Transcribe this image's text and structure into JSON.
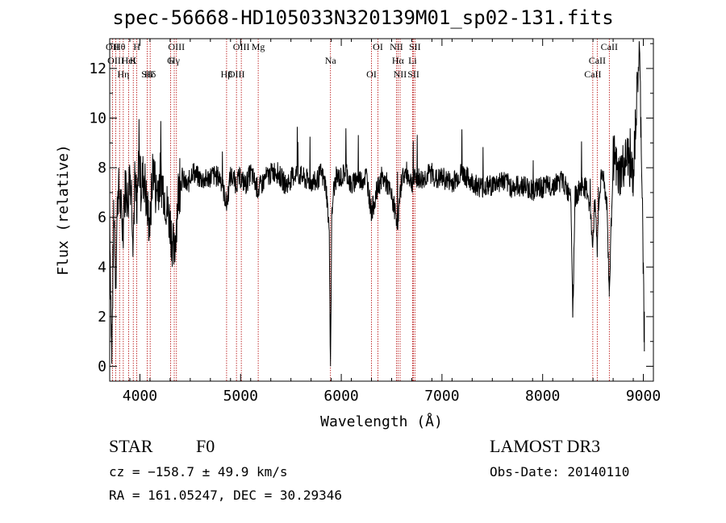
{
  "chart_data": {
    "type": "line",
    "title": "spec-56668-HD105033N320139M01_sp02-131.fits",
    "xlabel": "Wavelength (Å)",
    "ylabel": "Flux (relative)",
    "xlim": [
      3700,
      9100
    ],
    "ylim": [
      -0.6,
      13.2
    ],
    "xticks": [
      4000,
      5000,
      6000,
      7000,
      8000,
      9000
    ],
    "yticks": [
      0,
      2,
      4,
      6,
      8,
      10,
      12
    ],
    "series": [
      {
        "name": "flux",
        "x": [
          3700,
          3720,
          3740,
          3760,
          3780,
          3800,
          3830,
          3860,
          3880,
          3900,
          3920,
          3933,
          3950,
          3968,
          3990,
          4010,
          4040,
          4070,
          4101,
          4130,
          4160,
          4200,
          4230,
          4260,
          4300,
          4340,
          4380,
          4420,
          4470,
          4520,
          4580,
          4650,
          4720,
          4800,
          4861,
          4900,
          4950,
          5000,
          5050,
          5100,
          5175,
          5250,
          5350,
          5450,
          5550,
          5650,
          5750,
          5800,
          5850,
          5880,
          5893,
          5905,
          5920,
          5950,
          6000,
          6050,
          6100,
          6150,
          6200,
          6250,
          6300,
          6350,
          6400,
          6450,
          6500,
          6563,
          6600,
          6650,
          6700,
          6750,
          6800,
          6850,
          6900,
          6950,
          7000,
          7100,
          7200,
          7300,
          7400,
          7500,
          7600,
          7700,
          7800,
          7900,
          8000,
          8100,
          8200,
          8250,
          8280,
          8300,
          8320,
          8350,
          8400,
          8450,
          8498,
          8520,
          8542,
          8570,
          8600,
          8640,
          8662,
          8700,
          8750,
          8800,
          8850,
          8900,
          8930,
          8960,
          8990,
          9010
        ],
        "values": [
          6.5,
          0.1,
          6.0,
          3.5,
          7.2,
          6.8,
          5.5,
          7.5,
          6.5,
          8.0,
          6.8,
          5.2,
          7.5,
          5.6,
          8.5,
          7.2,
          7.8,
          6.4,
          5.6,
          8.2,
          7.0,
          7.6,
          7.3,
          6.6,
          5.8,
          4.4,
          7.0,
          7.6,
          7.2,
          7.9,
          7.6,
          7.5,
          7.7,
          7.6,
          6.5,
          7.7,
          7.4,
          7.6,
          7.3,
          7.8,
          7.1,
          7.6,
          7.9,
          7.3,
          7.8,
          7.5,
          7.4,
          7.8,
          7.2,
          5.5,
          0.0,
          5.8,
          7.0,
          7.6,
          7.6,
          7.9,
          7.2,
          7.6,
          7.5,
          7.7,
          6.2,
          7.0,
          7.6,
          7.4,
          6.8,
          5.8,
          7.6,
          7.8,
          7.4,
          7.6,
          7.5,
          7.7,
          7.8,
          7.5,
          7.6,
          7.4,
          7.8,
          7.4,
          7.2,
          7.3,
          7.5,
          7.2,
          7.3,
          7.1,
          7.2,
          7.3,
          7.5,
          7.0,
          7.2,
          2.0,
          6.8,
          7.0,
          7.3,
          7.0,
          5.0,
          6.8,
          4.8,
          7.4,
          7.8,
          6.4,
          2.8,
          8.6,
          7.5,
          8.0,
          8.4,
          7.5,
          10.2,
          12.8,
          7.0,
          0.6
        ],
        "color": "#000000"
      }
    ],
    "line_markers": [
      {
        "label": "Hθ",
        "wavelength": 3798
      },
      {
        "label": "K",
        "wavelength": 3934
      },
      {
        "label": "Hδ",
        "wavelength": 4102
      },
      {
        "label": "OII",
        "wavelength": 3727
      },
      {
        "label": "HeI",
        "wavelength": 3889
      },
      {
        "label": "SII",
        "wavelength": 4072
      },
      {
        "label": "OIII",
        "wavelength": 4363
      },
      {
        "label": "Hγ",
        "wavelength": 4341
      },
      {
        "label": "OIII",
        "wavelength": 4959
      },
      {
        "label": "OIII",
        "wavelength": 5007
      },
      {
        "label": "OIII",
        "wavelength": 3760
      },
      {
        "label": "Hη",
        "wavelength": 3835
      },
      {
        "label": "H",
        "wavelength": 3969
      },
      {
        "label": "G",
        "wavelength": 4305
      },
      {
        "label": "Hβ",
        "wavelength": 4861
      },
      {
        "label": "Mg",
        "wavelength": 5175
      },
      {
        "label": "Na",
        "wavelength": 5893
      },
      {
        "label": "OI",
        "wavelength": 6300
      },
      {
        "label": "OI",
        "wavelength": 6364
      },
      {
        "label": "Hα",
        "wavelength": 6563
      },
      {
        "label": "SII",
        "wavelength": 6717
      },
      {
        "label": "NII",
        "wavelength": 6548
      },
      {
        "label": "Li",
        "wavelength": 6708
      },
      {
        "label": "NII",
        "wavelength": 6584
      },
      {
        "label": "SII",
        "wavelength": 6731
      },
      {
        "label": "CaII",
        "wavelength": 8542
      },
      {
        "label": "CaII",
        "wavelength": 8498
      },
      {
        "label": "CaII",
        "wavelength": 8662
      }
    ],
    "marker_color": "#b30000"
  },
  "info": {
    "class": "STAR",
    "subclass": "F0",
    "survey": "LAMOST DR3",
    "cz": "cz = −158.7 ± 49.9 km/s",
    "obs_date": "Obs-Date: 20140110",
    "coords": "RA = 161.05247, DEC =  30.29346"
  }
}
